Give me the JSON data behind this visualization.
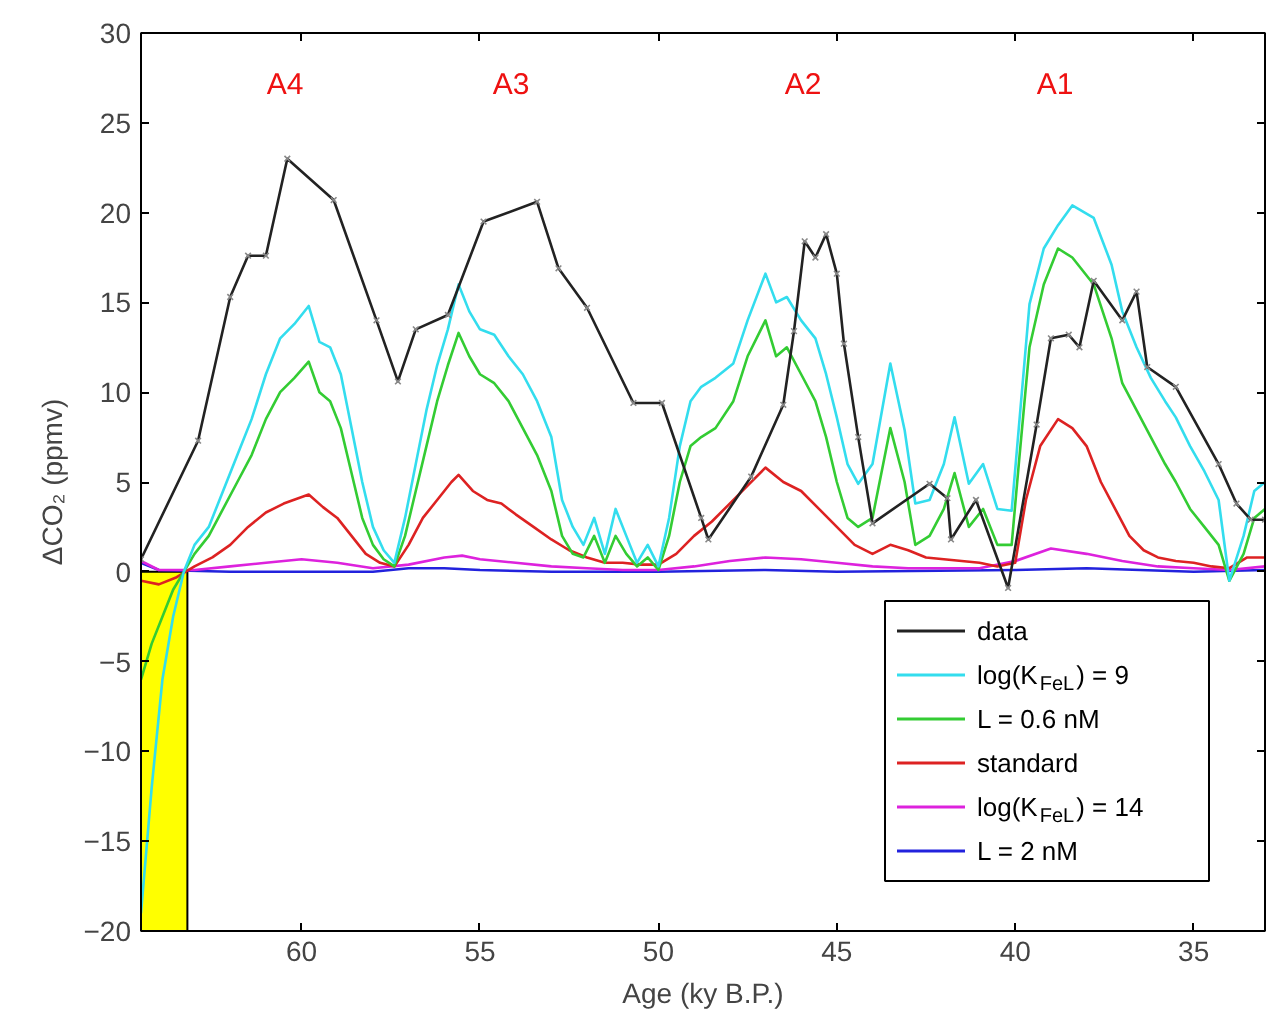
{
  "chart_data": {
    "type": "line",
    "xlabel": "Age (ky B.P.)",
    "ylabel": "ΔCO₂ (ppmv)",
    "xlim": [
      64.5,
      33
    ],
    "ylim": [
      -20,
      30
    ],
    "xticks": [
      60,
      55,
      50,
      45,
      40,
      35
    ],
    "yticks": [
      -20,
      -15,
      -10,
      -5,
      0,
      5,
      10,
      15,
      20,
      25,
      30
    ],
    "legend": "bottom right",
    "line_style": "solid",
    "bands": [
      {
        "axis": "x",
        "from": 64.5,
        "to": 63.2,
        "color": "#ffff00"
      }
    ],
    "annotations": [
      "A4",
      "A3",
      "A2",
      "A1"
    ],
    "series": [
      {
        "name": "data",
        "color": "#222222",
        "marker": "cross",
        "x": [
          64.5,
          62.9,
          62.0,
          61.5,
          61.0,
          60.4,
          59.1,
          57.9,
          57.3,
          56.8,
          55.9,
          54.9,
          53.4,
          52.8,
          52.0,
          50.7,
          49.9,
          48.8,
          48.6,
          47.4,
          46.5,
          46.2,
          45.9,
          45.6,
          45.3,
          45.0,
          44.8,
          44.4,
          44.0,
          42.4,
          41.9,
          41.8,
          41.1,
          40.2,
          39.4,
          39.0,
          38.5,
          38.2,
          37.8,
          37.0,
          36.6,
          36.3,
          35.5,
          34.3,
          33.8,
          33.4,
          33.0
        ],
        "values": [
          0.7,
          7.3,
          15.3,
          17.6,
          17.6,
          23.0,
          20.7,
          14.0,
          10.6,
          13.5,
          14.3,
          19.5,
          20.6,
          16.9,
          14.7,
          9.4,
          9.4,
          3.0,
          1.8,
          5.3,
          9.3,
          13.4,
          18.4,
          17.5,
          18.8,
          16.6,
          12.7,
          7.5,
          2.7,
          4.9,
          4.1,
          1.8,
          4.0,
          -0.9,
          8.2,
          13.0,
          13.2,
          12.5,
          16.2,
          14.0,
          15.6,
          11.4,
          10.3,
          6.0,
          3.8,
          2.9,
          2.9
        ]
      },
      {
        "name": "log(K$_{FeL}$) = 9",
        "color": "#33ddee",
        "x": [
          64.5,
          64.2,
          63.9,
          63.6,
          63.3,
          63.0,
          62.6,
          62.2,
          61.8,
          61.4,
          61.0,
          60.6,
          60.2,
          59.8,
          59.5,
          59.2,
          58.9,
          58.6,
          58.3,
          58.0,
          57.7,
          57.4,
          57.1,
          56.8,
          56.5,
          56.2,
          55.9,
          55.6,
          55.3,
          55.0,
          54.6,
          54.2,
          53.8,
          53.4,
          53.0,
          52.7,
          52.4,
          52.1,
          51.8,
          51.5,
          51.2,
          50.9,
          50.6,
          50.3,
          50.0,
          49.7,
          49.4,
          49.1,
          48.8,
          48.4,
          47.9,
          47.5,
          47.0,
          46.7,
          46.4,
          46.0,
          45.6,
          45.3,
          45.0,
          44.7,
          44.4,
          44.0,
          43.5,
          43.1,
          42.8,
          42.4,
          42.0,
          41.7,
          41.3,
          40.9,
          40.5,
          40.1,
          39.9,
          39.6,
          39.2,
          38.8,
          38.4,
          37.8,
          37.3,
          37.0,
          36.6,
          36.2,
          35.8,
          35.5,
          35.1,
          34.7,
          34.3,
          34.0,
          33.6,
          33.3,
          33.0
        ],
        "values": [
          -19,
          -12,
          -6,
          -2.5,
          0,
          1.5,
          2.5,
          4.5,
          6.5,
          8.5,
          11,
          13,
          13.8,
          14.8,
          12.8,
          12.5,
          11,
          8,
          5,
          2.5,
          1.2,
          0.5,
          3,
          6,
          9,
          11.5,
          13.5,
          16,
          14.5,
          13.5,
          13.2,
          12,
          11,
          9.5,
          7.5,
          4,
          2.5,
          1.5,
          3,
          1,
          3.5,
          2,
          0.5,
          1.5,
          0.3,
          3,
          7,
          9.5,
          10.3,
          10.8,
          11.6,
          14,
          16.6,
          15,
          15.3,
          14,
          13,
          11,
          8.6,
          6,
          4.9,
          6,
          11.6,
          7.9,
          3.8,
          4,
          6,
          8.6,
          4.9,
          6,
          3.5,
          3.4,
          8,
          14.9,
          18,
          19.3,
          20.4,
          19.7,
          17.1,
          14.5,
          12.5,
          10.8,
          9.5,
          8.6,
          7,
          5.6,
          4,
          -0.5,
          2,
          4.5,
          5
        ]
      },
      {
        "name": "L = 0.6 nM",
        "color": "#33cc33",
        "x": [
          64.5,
          64.2,
          63.9,
          63.6,
          63.3,
          63.0,
          62.6,
          62.2,
          61.8,
          61.4,
          61.0,
          60.6,
          60.2,
          59.8,
          59.5,
          59.2,
          58.9,
          58.6,
          58.3,
          58.0,
          57.7,
          57.4,
          57.1,
          56.8,
          56.5,
          56.2,
          55.9,
          55.6,
          55.3,
          55.0,
          54.6,
          54.2,
          53.8,
          53.4,
          53.0,
          52.7,
          52.4,
          52.1,
          51.8,
          51.5,
          51.2,
          50.9,
          50.6,
          50.3,
          50.0,
          49.7,
          49.4,
          49.1,
          48.8,
          48.4,
          47.9,
          47.5,
          47.0,
          46.7,
          46.4,
          46.0,
          45.6,
          45.3,
          45.0,
          44.7,
          44.4,
          44.0,
          43.5,
          43.1,
          42.8,
          42.4,
          42.0,
          41.7,
          41.3,
          40.9,
          40.5,
          40.1,
          39.9,
          39.6,
          39.2,
          38.8,
          38.4,
          37.8,
          37.3,
          37.0,
          36.6,
          36.2,
          35.8,
          35.5,
          35.1,
          34.7,
          34.3,
          34.0,
          33.6,
          33.3,
          33.0
        ],
        "values": [
          -6,
          -4,
          -2.5,
          -1,
          0,
          1,
          2,
          3.5,
          5,
          6.5,
          8.5,
          10,
          10.8,
          11.7,
          10,
          9.5,
          8,
          5.5,
          3,
          1.5,
          0.7,
          0.3,
          2,
          4.5,
          7,
          9.5,
          11.5,
          13.3,
          12,
          11,
          10.5,
          9.5,
          8,
          6.5,
          4.5,
          2,
          1,
          0.8,
          2,
          0.5,
          2,
          1,
          0.3,
          0.8,
          0.1,
          2,
          5,
          7,
          7.5,
          8,
          9.5,
          12,
          14,
          12,
          12.5,
          11,
          9.5,
          7.5,
          5,
          3,
          2.5,
          3,
          8,
          5,
          1.5,
          2,
          3.5,
          5.5,
          2.5,
          3.5,
          1.5,
          1.5,
          6,
          12.5,
          16,
          18,
          17.5,
          16,
          13,
          10.5,
          9,
          7.5,
          6,
          5,
          3.5,
          2.5,
          1.5,
          -0.5,
          1,
          3,
          3.5
        ]
      },
      {
        "name": "standard",
        "color": "#dd2222",
        "x": [
          64.5,
          64.0,
          63.5,
          63.0,
          62.5,
          62.0,
          61.5,
          61.0,
          60.5,
          59.8,
          59.4,
          59.0,
          58.6,
          58.2,
          57.8,
          57.4,
          57.0,
          56.6,
          56.2,
          55.8,
          55.6,
          55.2,
          54.8,
          54.4,
          54.0,
          53.5,
          53.0,
          52.5,
          52.0,
          51.5,
          51.0,
          50.5,
          50.0,
          49.5,
          49.0,
          48.5,
          48.0,
          47.5,
          47.0,
          46.5,
          46.0,
          45.5,
          45.0,
          44.5,
          44.0,
          43.5,
          43.0,
          42.5,
          42.0,
          41.5,
          41.0,
          40.5,
          40.0,
          39.7,
          39.3,
          38.8,
          38.4,
          38.0,
          37.6,
          37.2,
          36.8,
          36.4,
          36.0,
          35.5,
          35.0,
          34.5,
          34.0,
          33.5,
          33.0
        ],
        "values": [
          -0.5,
          -0.7,
          -0.3,
          0.3,
          0.8,
          1.5,
          2.5,
          3.3,
          3.8,
          4.3,
          3.6,
          3,
          2,
          1,
          0.5,
          0.3,
          1.5,
          3,
          4,
          5,
          5.4,
          4.5,
          4,
          3.8,
          3.2,
          2.5,
          1.8,
          1.2,
          0.8,
          0.5,
          0.5,
          0.4,
          0.4,
          1,
          2,
          2.8,
          3.8,
          4.8,
          5.8,
          5,
          4.5,
          3.5,
          2.5,
          1.5,
          1,
          1.5,
          1.2,
          0.8,
          0.7,
          0.6,
          0.5,
          0.3,
          0.5,
          4,
          7,
          8.5,
          8,
          7,
          5,
          3.5,
          2,
          1.2,
          0.8,
          0.6,
          0.5,
          0.3,
          0.2,
          0.8,
          0.8
        ]
      },
      {
        "name": "log(K$_{FeL}$) = 14",
        "color": "#dd22dd",
        "x": [
          64.5,
          64.0,
          63.0,
          62.0,
          61.0,
          60.0,
          59.0,
          58.0,
          57.0,
          56.0,
          55.5,
          55.0,
          54.0,
          53.0,
          52.0,
          51.0,
          50.0,
          49.0,
          48.0,
          47.0,
          46.0,
          45.0,
          44.0,
          43.0,
          42.0,
          41.0,
          40.0,
          39.0,
          38.0,
          37.0,
          36.0,
          35.0,
          34.0,
          33.0
        ],
        "values": [
          0.6,
          0.1,
          0.1,
          0.3,
          0.5,
          0.7,
          0.5,
          0.2,
          0.4,
          0.8,
          0.9,
          0.7,
          0.5,
          0.3,
          0.2,
          0.1,
          0.1,
          0.3,
          0.6,
          0.8,
          0.7,
          0.5,
          0.3,
          0.2,
          0.2,
          0.2,
          0.6,
          1.3,
          1.0,
          0.6,
          0.3,
          0.2,
          0.1,
          0.3
        ]
      },
      {
        "name": "L = 2 nM",
        "color": "#2222dd",
        "x": [
          64.5,
          64.0,
          62.0,
          60.0,
          58.0,
          57.0,
          56.0,
          55.0,
          53.0,
          50.0,
          47.0,
          45.0,
          40.0,
          38.0,
          35.0,
          33.0
        ],
        "values": [
          0.5,
          0.1,
          0,
          0,
          0,
          0.2,
          0.2,
          0.1,
          0,
          0,
          0.1,
          0,
          0.1,
          0.2,
          0,
          0.1
        ]
      }
    ]
  }
}
